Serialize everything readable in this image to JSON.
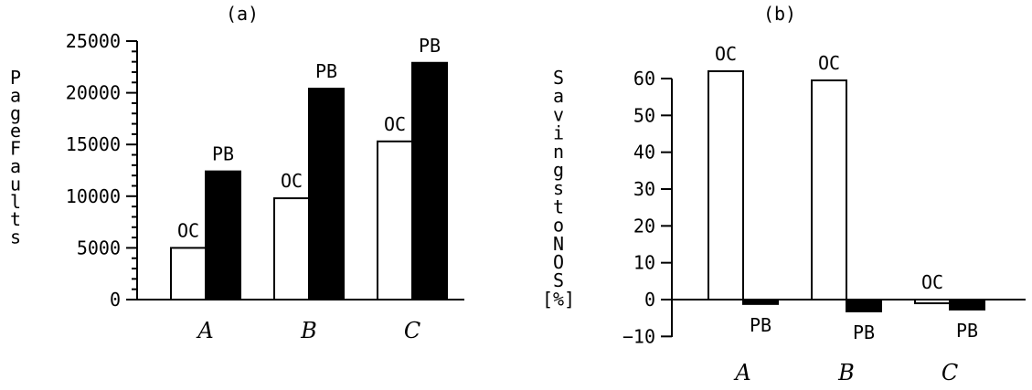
{
  "chart_data": [
    {
      "type": "bar",
      "title": "(a)",
      "ylabel": "Page Faults",
      "ylim": [
        0,
        25000
      ],
      "yticks": [
        0,
        5000,
        10000,
        15000,
        20000,
        25000
      ],
      "yticklabels": [
        "0",
        "5000",
        "10000",
        "15000",
        "20000",
        "25000"
      ],
      "categories": [
        "A",
        "B",
        "C"
      ],
      "series": [
        {
          "name": "OC",
          "values": [
            5000,
            9800,
            15300
          ],
          "fill": "#ffffff"
        },
        {
          "name": "PB",
          "values": [
            12400,
            20400,
            22900
          ],
          "fill": "#000000"
        }
      ]
    },
    {
      "type": "bar",
      "title": "(b)",
      "ylabel": "Savings to NOS [%]",
      "ylim": [
        -10,
        65
      ],
      "yticks": [
        -10,
        0,
        10,
        20,
        30,
        40,
        50,
        60
      ],
      "yticklabels": [
        "−10",
        "0",
        "10",
        "20",
        "30",
        "40",
        "50",
        "60"
      ],
      "categories": [
        "A",
        "B",
        "C"
      ],
      "series": [
        {
          "name": "OC",
          "values": [
            62,
            59.5,
            -1
          ],
          "fill": "#ffffff"
        },
        {
          "name": "PB",
          "values": [
            -1.2,
            -3.2,
            -2.7
          ],
          "fill": "#000000"
        }
      ]
    }
  ]
}
